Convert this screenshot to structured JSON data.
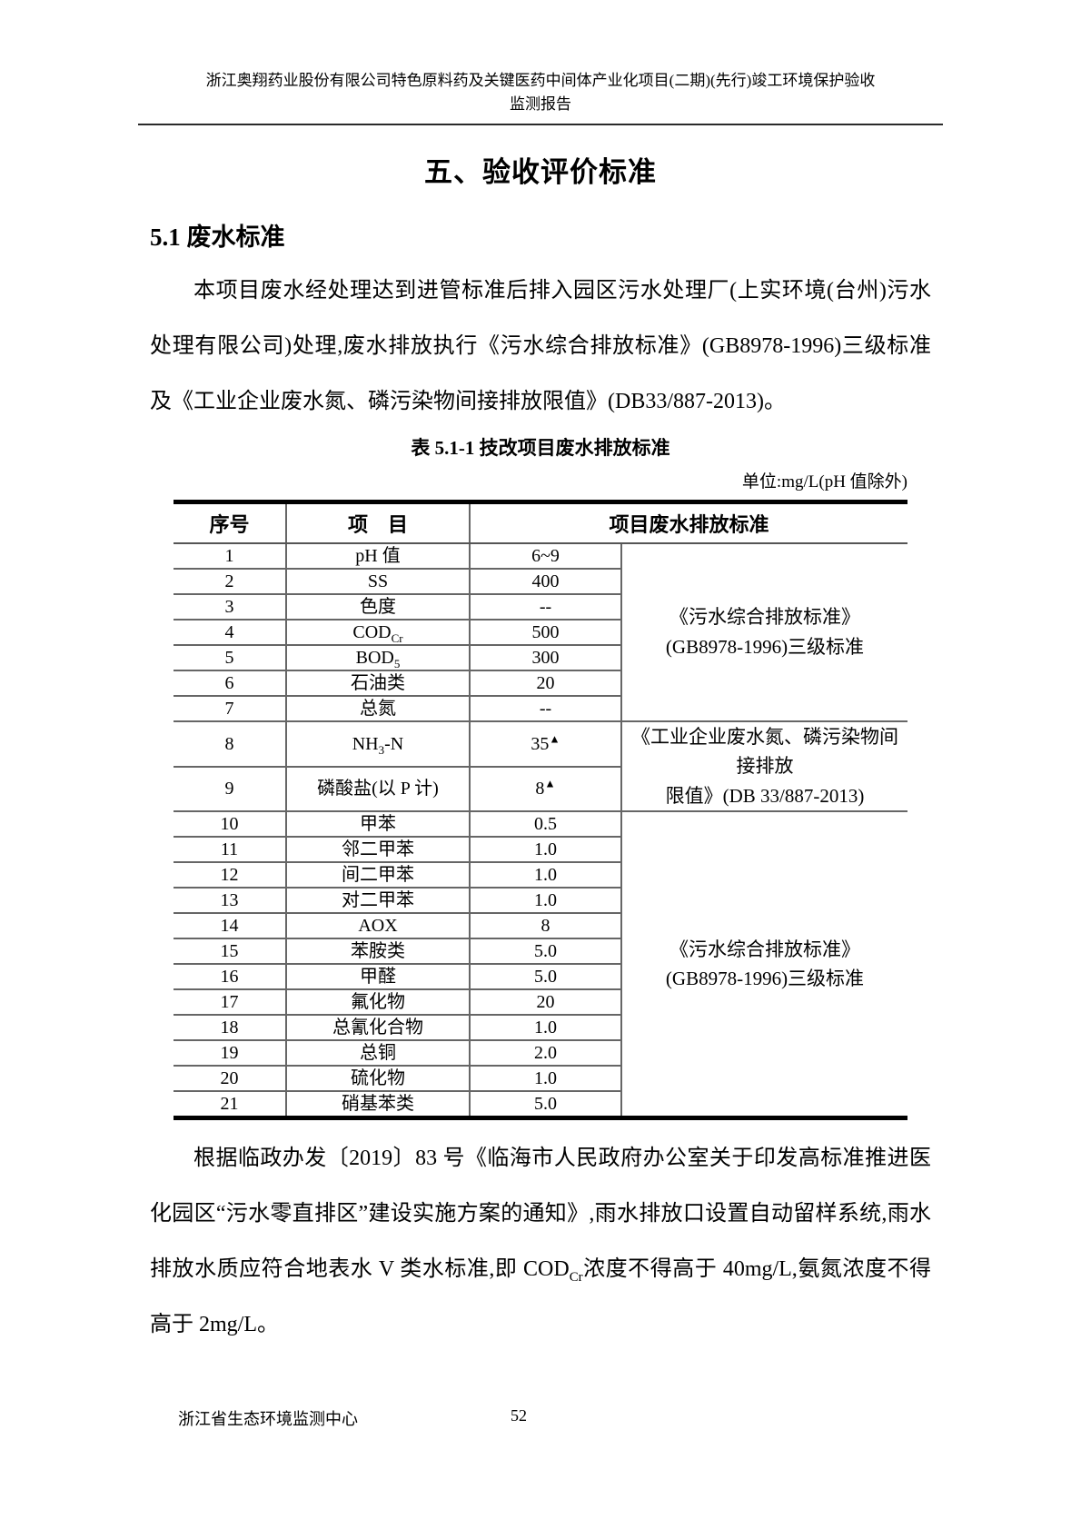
{
  "header": {
    "line1": "浙江奥翔药业股份有限公司特色原料药及关键医药中间体产业化项目(二期)(先行)竣工环境保护验收",
    "line2": "监测报告"
  },
  "chapter_title": "五、验收评价标准",
  "section_heading": "5.1 废水标准",
  "paragraphs": {
    "p1": "本项目废水经处理达到进管标准后排入园区污水处理厂(上实环境(台州)污水处理有限公司)处理,废水排放执行《污水综合排放标准》(GB8978-1996)三级标准及《工业企业废水氮、磷污染物间接排放限值》(DB33/887-2013)。",
    "p2_before": "根据临政办发〔2019〕83 号《临海市人民政府办公室关于印发高标准推进医化园区“污水零直排区”建设实施方案的通知》,雨水排放口设置自动留样系统,雨水排放水质应符合地表水 V 类水标准,即 COD",
    "p2_sub": "Cr",
    "p2_after": "浓度不得高于 40mg/L,氨氮浓度不得高于 2mg/L。"
  },
  "table": {
    "caption": "表 5.1-1 技改项目废水排放标准",
    "unit_note": "单位:mg/L(pH 值除外)",
    "headers": {
      "no": "序号",
      "item": "项　目",
      "standard": "项目废水排放标准"
    },
    "groups": [
      {
        "standard_lines": [
          "《污水综合排放标准》",
          "(GB8978-1996)三级标准"
        ],
        "rows": [
          {
            "no": "1",
            "item_main": "pH 值",
            "value": "6~9"
          },
          {
            "no": "2",
            "item_main": "SS",
            "value": "400"
          },
          {
            "no": "3",
            "item_main": "色度",
            "value": "--"
          },
          {
            "no": "4",
            "item_main": "COD",
            "item_sub": "Cr",
            "value": "500"
          },
          {
            "no": "5",
            "item_main": "BOD",
            "item_sub": "5",
            "value": "300"
          },
          {
            "no": "6",
            "item_main": "石油类",
            "value": "20"
          },
          {
            "no": "7",
            "item_main": "总氮",
            "value": "--"
          }
        ]
      },
      {
        "standard_lines": [
          "《工业企业废水氮、磷污染物间接排放",
          "限值》(DB 33/887-2013)"
        ],
        "rows": [
          {
            "no": "8",
            "item_main": "NH",
            "item_sub": "3",
            "item_tail": "-N",
            "value": "35",
            "value_sup": "▲"
          },
          {
            "no": "9",
            "item_main": "磷酸盐(以 P 计)",
            "value": "8",
            "value_sup": "▲"
          }
        ]
      },
      {
        "standard_lines": [
          "《污水综合排放标准》",
          "(GB8978-1996)三级标准"
        ],
        "rows": [
          {
            "no": "10",
            "item_main": "甲苯",
            "value": "0.5"
          },
          {
            "no": "11",
            "item_main": "邻二甲苯",
            "value": "1.0"
          },
          {
            "no": "12",
            "item_main": "间二甲苯",
            "value": "1.0"
          },
          {
            "no": "13",
            "item_main": "对二甲苯",
            "value": "1.0"
          },
          {
            "no": "14",
            "item_main": "AOX",
            "value": "8"
          },
          {
            "no": "15",
            "item_main": "苯胺类",
            "value": "5.0"
          },
          {
            "no": "16",
            "item_main": "甲醛",
            "value": "5.0"
          },
          {
            "no": "17",
            "item_main": "氟化物",
            "value": "20"
          },
          {
            "no": "18",
            "item_main": "总氰化合物",
            "value": "1.0"
          },
          {
            "no": "19",
            "item_main": "总铜",
            "value": "2.0"
          },
          {
            "no": "20",
            "item_main": "硫化物",
            "value": "1.0"
          },
          {
            "no": "21",
            "item_main": "硝基苯类",
            "value": "5.0"
          }
        ]
      }
    ]
  },
  "footer": {
    "org": "浙江省生态环境监测中心",
    "page_number": "52"
  }
}
